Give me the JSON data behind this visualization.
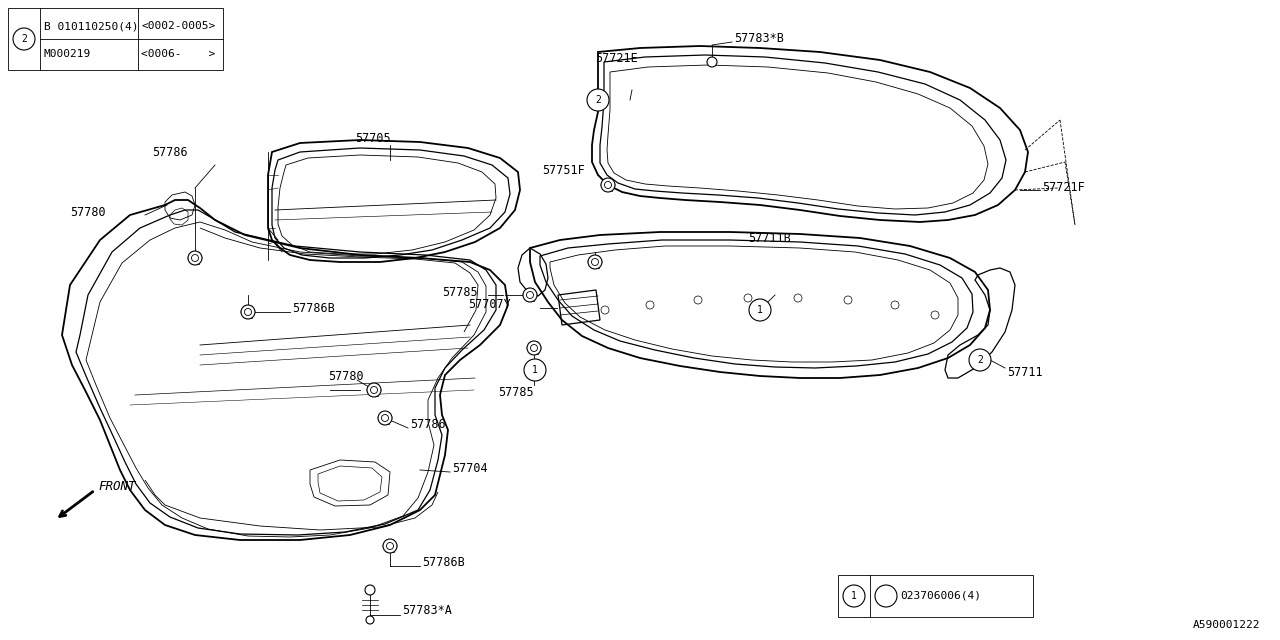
{
  "bg_color": "#ffffff",
  "line_color": "#000000",
  "diagram_id": "A590001222",
  "box1_row1_col1": "B 010110250(4)",
  "box1_row1_col2": "<0002-0005>",
  "box1_row2_col1": "M000219",
  "box1_row2_col2": "<0006-    >"
}
